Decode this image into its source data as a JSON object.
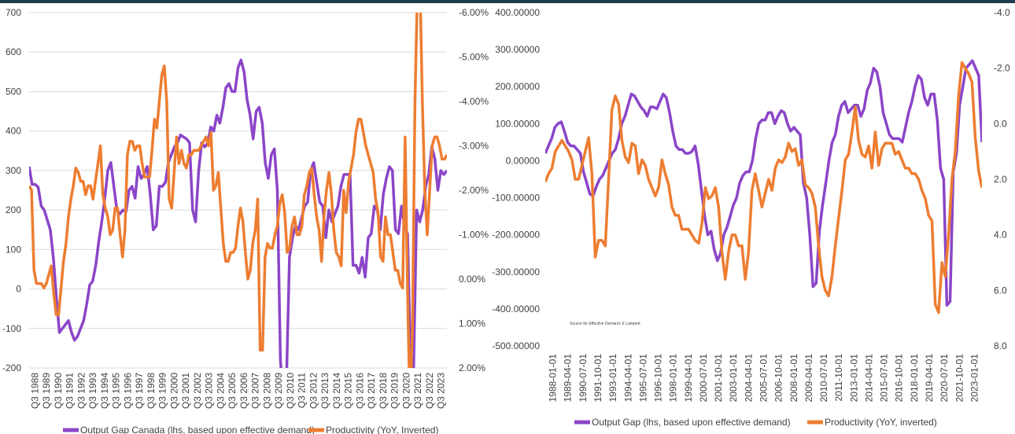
{
  "colors": {
    "purple": "#8b45c8",
    "orange": "#ed7d31",
    "grid": "#d9d9d9",
    "text": "#404040"
  },
  "chart_data": [
    {
      "type": "line",
      "title": "",
      "legend_position": "bottom",
      "grid": true,
      "y_left": {
        "lim": [
          -200,
          700
        ],
        "ticks": [
          "700",
          "600",
          "500",
          "400",
          "300",
          "200",
          "100",
          "0",
          "-100",
          "-200"
        ]
      },
      "y_right": {
        "lim": [
          -6.0,
          2.0
        ],
        "inverted": true,
        "ticks": [
          "-6.00%",
          "-5.00%",
          "-4.00%",
          "-3.00%",
          "-2.00%",
          "-1.00%",
          "0.00%",
          "1.00%",
          "2.00%"
        ]
      },
      "x_ticks": [
        "Q3 1988",
        "Q3 1989",
        "Q3 1990",
        "Q3 1991",
        "Q3 1992",
        "Q3 1993",
        "Q3 1994",
        "Q3 1995",
        "Q3 1996",
        "Q3 1997",
        "Q3 1998",
        "Q3 1999",
        "Q3 2000",
        "Q3 2001",
        "Q3 2002",
        "Q3 2003",
        "Q3 2004",
        "Q3 2005",
        "Q3 2006",
        "Q3 2007",
        "Q3 2008",
        "Q3 2009",
        "Q3 2010",
        "Q3 2011",
        "Q3 2012",
        "Q3 2013",
        "Q3 2014",
        "Q3 2015",
        "Q3 2016",
        "Q3 2017",
        "Q3 2018",
        "Q3 2019",
        "Q3 2020",
        "Q3 2021",
        "Q3 2022",
        "Q3 2023"
      ],
      "series": [
        {
          "name": "Output Gap Canada (lhs, based upon effective demand)",
          "axis": "left",
          "color": "#8b45c8",
          "values": [
            310,
            265,
            265,
            258,
            210,
            200,
            175,
            150,
            80,
            -20,
            -110,
            -100,
            -90,
            -80,
            -110,
            -130,
            -120,
            -100,
            -80,
            -40,
            10,
            20,
            60,
            120,
            170,
            230,
            300,
            320,
            260,
            200,
            190,
            200,
            195,
            250,
            260,
            230,
            310,
            280,
            290,
            310,
            240,
            150,
            160,
            260,
            260,
            270,
            320,
            340,
            360,
            370,
            390,
            385,
            380,
            370,
            200,
            170,
            300,
            370,
            360,
            370,
            410,
            400,
            440,
            420,
            460,
            510,
            520,
            500,
            500,
            560,
            580,
            550,
            480,
            440,
            380,
            450,
            460,
            420,
            320,
            280,
            340,
            355,
            250,
            -180,
            -280,
            -230,
            80,
            130,
            160,
            150,
            180,
            210,
            220,
            300,
            320,
            270,
            220,
            210,
            130,
            200,
            170,
            190,
            210,
            260,
            290,
            290,
            290,
            60,
            60,
            40,
            80,
            30,
            130,
            140,
            210,
            200,
            150,
            240,
            280,
            310,
            300,
            150,
            140,
            210,
            160,
            140,
            -190,
            -200,
            200,
            170,
            200,
            260,
            290,
            360,
            330,
            250,
            300,
            290,
            300
          ]
        },
        {
          "name": "Productivity (YoY, Inverted)",
          "axis": "right",
          "color": "#ed7d31",
          "values": [
            -2.1,
            -2.0,
            -0.2,
            0.1,
            0.1,
            0.1,
            0.2,
            0.1,
            -0.1,
            -0.3,
            0.3,
            0.8,
            0.8,
            0.2,
            -0.4,
            -0.8,
            -1.4,
            -1.8,
            -2.1,
            -2.5,
            -2.4,
            -2.2,
            -2.2,
            -1.9,
            -2.1,
            -2.1,
            -1.8,
            -2.2,
            -2.6,
            -3.0,
            -1.9,
            -1.6,
            -1.4,
            -1.0,
            -1.1,
            -1.6,
            -1.6,
            -1.0,
            -0.5,
            -1.1,
            -2.8,
            -3.1,
            -3.1,
            -2.9,
            -3.0,
            -3.0,
            -2.6,
            -2.3,
            -2.3,
            -2.3,
            -2.9,
            -3.6,
            -3.4,
            -4.0,
            -4.6,
            -4.8,
            -4.0,
            -1.8,
            -1.6,
            -2.4,
            -3.2,
            -2.6,
            -2.9,
            -2.6,
            -2.5,
            -2.8,
            -2.8,
            -2.9,
            -2.9,
            -2.9,
            -3.0,
            -3.1,
            -3.2,
            -3.0,
            -3.3,
            -2.0,
            -2.1,
            -2.4,
            -1.6,
            -0.8,
            -0.4,
            -0.4,
            -0.6,
            -0.6,
            -0.7,
            -1.2,
            -1.6,
            -1.3,
            -0.6,
            0.0,
            -0.2,
            -0.8,
            -1.1,
            -1.8,
            1.6,
            1.6,
            -0.5,
            -0.8,
            -0.7,
            -0.7,
            -1.0,
            -1.2,
            -1.7,
            -1.9,
            -1.5,
            -0.6,
            -0.7,
            -1.2,
            -1.4,
            -1.0,
            -1.0,
            -1.2,
            -1.9,
            -2.1,
            -2.4,
            -2.5,
            -1.9,
            -1.4,
            -1.1,
            -0.4,
            -1.4,
            -2.0,
            -2.4,
            -1.9,
            -1.1,
            -0.6,
            -0.5,
            -0.3,
            -2.0,
            -1.5,
            -2.2,
            -2.5,
            -2.8,
            -3.3,
            -3.6,
            -3.6,
            -3.3,
            -3.0,
            -2.8,
            -2.6,
            -2.4,
            -1.8,
            -1.5,
            -0.5,
            -0.4,
            -1.4,
            -1.0,
            -1.0,
            -0.6,
            -0.2,
            -0.2,
            0.1,
            0.2,
            -3.2,
            0.3,
            3.0,
            1.0,
            -4.0,
            -6.5,
            -6.8,
            -4.0,
            -2.0,
            -1.0,
            -2.0,
            -3.0,
            -3.2,
            -3.2,
            -3.0,
            -2.7,
            -2.7,
            -2.8
          ]
        }
      ]
    },
    {
      "type": "line",
      "title": "",
      "legend_position": "bottom",
      "grid": false,
      "annotation": "Source for Effective Demand: E Lampert",
      "y_left": {
        "lim": [
          -500,
          400
        ],
        "ticks": [
          "400.00000",
          "300.00000",
          "200.00000",
          "100.00000",
          "0.00000",
          "-100.00000",
          "-200.00000",
          "-300.00000",
          "-400.00000",
          "-500.00000"
        ]
      },
      "y_right": {
        "lim": [
          -4.0,
          8.0
        ],
        "inverted": true,
        "ticks": [
          "-4.0",
          "-2.0",
          "0.0",
          "2.0",
          "4.0",
          "6.0",
          "8.0"
        ]
      },
      "x_ticks": [
        "1988-01-01",
        "1989-04-01",
        "1990-07-01",
        "1991-10-01",
        "1993-01-01",
        "1994-04-01",
        "1995-07-01",
        "1996-10-01",
        "1998-01-01",
        "1999-04-01",
        "2000-07-01",
        "2001-10-01",
        "2003-01-01",
        "2004-04-01",
        "2005-07-01",
        "2006-10-01",
        "2008-01-01",
        "2009-04-01",
        "2010-07-01",
        "2011-10-01",
        "2013-01-01",
        "2014-04-01",
        "2015-07-01",
        "2016-10-01",
        "2018-01-01",
        "2019-04-01",
        "2020-07-01",
        "2021-10-01",
        "2023-01-01"
      ],
      "series": [
        {
          "name": "Output Gap (lhs, based upon effective demand)",
          "axis": "left",
          "color": "#8b45c8",
          "values": [
            20,
            40,
            60,
            90,
            100,
            105,
            80,
            50,
            40,
            40,
            30,
            20,
            -30,
            -60,
            -90,
            -95,
            -70,
            -50,
            -40,
            -20,
            0,
            20,
            30,
            60,
            100,
            120,
            150,
            180,
            175,
            160,
            145,
            135,
            120,
            145,
            145,
            140,
            160,
            180,
            170,
            130,
            80,
            40,
            30,
            30,
            20,
            20,
            25,
            40,
            -10,
            -80,
            -150,
            -200,
            -190,
            -240,
            -270,
            -250,
            -200,
            -180,
            -150,
            -120,
            -100,
            -60,
            -40,
            -30,
            -30,
            0,
            60,
            100,
            110,
            110,
            130,
            130,
            100,
            120,
            135,
            130,
            100,
            80,
            90,
            80,
            70,
            -60,
            -100,
            -200,
            -340,
            -330,
            -190,
            -120,
            -60,
            0,
            50,
            70,
            120,
            150,
            160,
            130,
            140,
            150,
            150,
            120,
            140,
            190,
            210,
            250,
            240,
            200,
            130,
            100,
            70,
            60,
            60,
            60,
            50,
            90,
            130,
            160,
            200,
            230,
            220,
            170,
            150,
            180,
            180,
            110,
            -20,
            -50,
            -390,
            -380,
            -30,
            20,
            150,
            200,
            250,
            260,
            270,
            250,
            230,
            50
          ]
        },
        {
          "name": "Productivity (YoY, inverted)",
          "axis": "right",
          "color": "#ed7d31",
          "values": [
            2.1,
            1.8,
            1.6,
            1.0,
            0.8,
            0.6,
            0.8,
            1.0,
            1.3,
            2.0,
            2.0,
            1.5,
            1.0,
            0.5,
            1.8,
            4.8,
            4.2,
            4.2,
            4.4,
            2.0,
            -0.5,
            -1.0,
            -0.7,
            0.6,
            1.2,
            1.4,
            0.7,
            0.8,
            1.8,
            1.3,
            1.5,
            2.0,
            2.3,
            2.6,
            2.3,
            1.3,
            1.8,
            2.2,
            3.0,
            3.3,
            3.3,
            3.8,
            3.8,
            3.8,
            4.0,
            4.2,
            4.3,
            3.6,
            2.3,
            2.7,
            2.6,
            2.3,
            3.0,
            4.6,
            5.6,
            4.6,
            4.0,
            4.0,
            4.4,
            4.4,
            5.6,
            4.6,
            2.4,
            1.8,
            2.4,
            3.0,
            2.5,
            2.0,
            2.4,
            1.6,
            1.3,
            1.4,
            1.2,
            0.7,
            1.0,
            0.9,
            1.5,
            1.3,
            2.2,
            2.3,
            2.5,
            3.0,
            4.4,
            5.5,
            6.0,
            6.2,
            5.5,
            4.4,
            3.4,
            2.4,
            1.3,
            1.1,
            0.3,
            -0.6,
            0.6,
            1.1,
            1.2,
            0.8,
            1.6,
            0.3,
            1.5,
            0.9,
            0.7,
            0.7,
            0.7,
            1.1,
            1.0,
            1.3,
            1.6,
            1.6,
            1.8,
            1.8,
            2.0,
            2.4,
            2.7,
            3.3,
            3.5,
            6.5,
            6.8,
            5.0,
            5.5,
            4.0,
            2.0,
            1.0,
            -1.0,
            -2.2,
            -2.0,
            -1.8,
            -1.5,
            0.5,
            1.7,
            2.3
          ]
        }
      ]
    }
  ]
}
